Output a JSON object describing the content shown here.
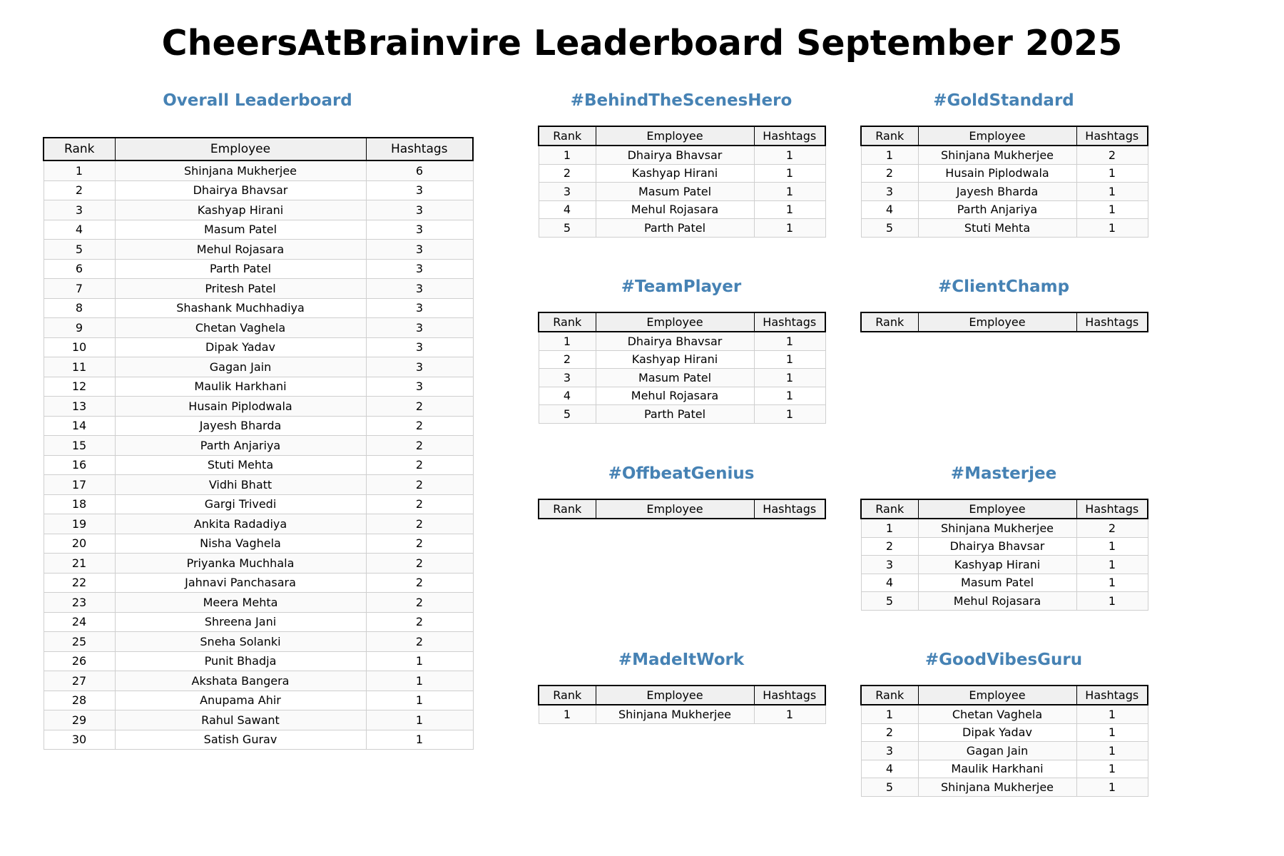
{
  "title": "CheersAtBrainvire Leaderboard September 2025",
  "columns": {
    "rank": "Rank",
    "employee": "Employee",
    "hashtags": "Hashtags"
  },
  "colors": {
    "section_title": "#4682b4",
    "header_bg": "#f0f0f0"
  },
  "sections": {
    "overall": {
      "title": "Overall Leaderboard",
      "rows": [
        {
          "rank": "1",
          "employee": "Shinjana Mukherjee",
          "hashtags": "6"
        },
        {
          "rank": "2",
          "employee": "Dhairya Bhavsar",
          "hashtags": "3"
        },
        {
          "rank": "3",
          "employee": "Kashyap Hirani",
          "hashtags": "3"
        },
        {
          "rank": "4",
          "employee": "Masum Patel",
          "hashtags": "3"
        },
        {
          "rank": "5",
          "employee": "Mehul Rojasara",
          "hashtags": "3"
        },
        {
          "rank": "6",
          "employee": "Parth Patel",
          "hashtags": "3"
        },
        {
          "rank": "7",
          "employee": "Pritesh Patel",
          "hashtags": "3"
        },
        {
          "rank": "8",
          "employee": "Shashank Muchhadiya",
          "hashtags": "3"
        },
        {
          "rank": "9",
          "employee": "Chetan Vaghela",
          "hashtags": "3"
        },
        {
          "rank": "10",
          "employee": "Dipak Yadav",
          "hashtags": "3"
        },
        {
          "rank": "11",
          "employee": "Gagan Jain",
          "hashtags": "3"
        },
        {
          "rank": "12",
          "employee": "Maulik Harkhani",
          "hashtags": "3"
        },
        {
          "rank": "13",
          "employee": "Husain Piplodwala",
          "hashtags": "2"
        },
        {
          "rank": "14",
          "employee": "Jayesh Bharda",
          "hashtags": "2"
        },
        {
          "rank": "15",
          "employee": "Parth Anjariya",
          "hashtags": "2"
        },
        {
          "rank": "16",
          "employee": "Stuti Mehta",
          "hashtags": "2"
        },
        {
          "rank": "17",
          "employee": "Vidhi Bhatt",
          "hashtags": "2"
        },
        {
          "rank": "18",
          "employee": "Gargi Trivedi",
          "hashtags": "2"
        },
        {
          "rank": "19",
          "employee": "Ankita Radadiya",
          "hashtags": "2"
        },
        {
          "rank": "20",
          "employee": "Nisha Vaghela",
          "hashtags": "2"
        },
        {
          "rank": "21",
          "employee": "Priyanka Muchhala",
          "hashtags": "2"
        },
        {
          "rank": "22",
          "employee": "Jahnavi Panchasara",
          "hashtags": "2"
        },
        {
          "rank": "23",
          "employee": "Meera Mehta",
          "hashtags": "2"
        },
        {
          "rank": "24",
          "employee": "Shreena Jani",
          "hashtags": "2"
        },
        {
          "rank": "25",
          "employee": "Sneha Solanki",
          "hashtags": "2"
        },
        {
          "rank": "26",
          "employee": "Punit Bhadja",
          "hashtags": "1"
        },
        {
          "rank": "27",
          "employee": "Akshata Bangera",
          "hashtags": "1"
        },
        {
          "rank": "28",
          "employee": "Anupama Ahir",
          "hashtags": "1"
        },
        {
          "rank": "29",
          "employee": "Rahul Sawant",
          "hashtags": "1"
        },
        {
          "rank": "30",
          "employee": "Satish Gurav",
          "hashtags": "1"
        }
      ]
    },
    "behind": {
      "title": "#BehindTheScenesHero",
      "rows": [
        {
          "rank": "1",
          "employee": "Dhairya Bhavsar",
          "hashtags": "1"
        },
        {
          "rank": "2",
          "employee": "Kashyap Hirani",
          "hashtags": "1"
        },
        {
          "rank": "3",
          "employee": "Masum Patel",
          "hashtags": "1"
        },
        {
          "rank": "4",
          "employee": "Mehul Rojasara",
          "hashtags": "1"
        },
        {
          "rank": "5",
          "employee": "Parth Patel",
          "hashtags": "1"
        }
      ]
    },
    "gold": {
      "title": "#GoldStandard",
      "rows": [
        {
          "rank": "1",
          "employee": "Shinjana Mukherjee",
          "hashtags": "2"
        },
        {
          "rank": "2",
          "employee": "Husain Piplodwala",
          "hashtags": "1"
        },
        {
          "rank": "3",
          "employee": "Jayesh Bharda",
          "hashtags": "1"
        },
        {
          "rank": "4",
          "employee": "Parth Anjariya",
          "hashtags": "1"
        },
        {
          "rank": "5",
          "employee": "Stuti Mehta",
          "hashtags": "1"
        }
      ]
    },
    "team": {
      "title": "#TeamPlayer",
      "rows": [
        {
          "rank": "1",
          "employee": "Dhairya Bhavsar",
          "hashtags": "1"
        },
        {
          "rank": "2",
          "employee": "Kashyap Hirani",
          "hashtags": "1"
        },
        {
          "rank": "3",
          "employee": "Masum Patel",
          "hashtags": "1"
        },
        {
          "rank": "4",
          "employee": "Mehul Rojasara",
          "hashtags": "1"
        },
        {
          "rank": "5",
          "employee": "Parth Patel",
          "hashtags": "1"
        }
      ]
    },
    "client": {
      "title": "#ClientChamp",
      "rows": []
    },
    "offbeat": {
      "title": "#OffbeatGenius",
      "rows": []
    },
    "master": {
      "title": "#Masterjee",
      "rows": [
        {
          "rank": "1",
          "employee": "Shinjana Mukherjee",
          "hashtags": "2"
        },
        {
          "rank": "2",
          "employee": "Dhairya Bhavsar",
          "hashtags": "1"
        },
        {
          "rank": "3",
          "employee": "Kashyap Hirani",
          "hashtags": "1"
        },
        {
          "rank": "4",
          "employee": "Masum Patel",
          "hashtags": "1"
        },
        {
          "rank": "5",
          "employee": "Mehul Rojasara",
          "hashtags": "1"
        }
      ]
    },
    "madeit": {
      "title": "#MadeItWork",
      "rows": [
        {
          "rank": "1",
          "employee": "Shinjana Mukherjee",
          "hashtags": "1"
        }
      ]
    },
    "goodvibes": {
      "title": "#GoodVibesGuru",
      "rows": [
        {
          "rank": "1",
          "employee": "Chetan Vaghela",
          "hashtags": "1"
        },
        {
          "rank": "2",
          "employee": "Dipak Yadav",
          "hashtags": "1"
        },
        {
          "rank": "3",
          "employee": "Gagan Jain",
          "hashtags": "1"
        },
        {
          "rank": "4",
          "employee": "Maulik Harkhani",
          "hashtags": "1"
        },
        {
          "rank": "5",
          "employee": "Shinjana Mukherjee",
          "hashtags": "1"
        }
      ]
    }
  }
}
